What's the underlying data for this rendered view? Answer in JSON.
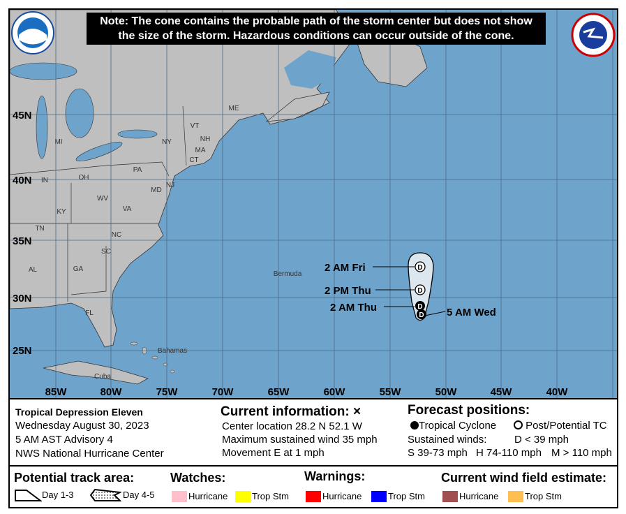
{
  "note": {
    "line1": "Note: The cone contains the probable path of the storm center but does not show",
    "line2": "the size of the storm. Hazardous conditions can occur outside of the cone."
  },
  "logos": {
    "left": "NOAA",
    "right": "NATIONAL WEATHER SERVICE"
  },
  "colors": {
    "ocean": "#6ea3cc",
    "land": "#bfbfbf",
    "cone": "#dbe6ee"
  },
  "map": {
    "lat_labels": [
      "45N",
      "40N",
      "35N",
      "30N",
      "25N"
    ],
    "lon_labels": [
      "85W",
      "80W",
      "75W",
      "70W",
      "65W",
      "60W",
      "55W",
      "50W",
      "45W",
      "40W"
    ],
    "states": [
      "MI",
      "OH",
      "IN",
      "KY",
      "TN",
      "AL",
      "GA",
      "SC",
      "NC",
      "VA",
      "WV",
      "PA",
      "NY",
      "VT",
      "NH",
      "ME",
      "MA",
      "CT",
      "MD",
      "NJ",
      "FL"
    ],
    "places": {
      "bermuda": "Bermuda",
      "bahamas": "Bahamas",
      "cuba": "Cuba"
    },
    "track": [
      {
        "label": "5 AM Wed",
        "symbol": "D",
        "type": "tropical-cyclone"
      },
      {
        "label": "2 AM Thu",
        "symbol": "D",
        "type": "tropical-cyclone"
      },
      {
        "label": "2 PM Thu",
        "symbol": "D",
        "type": "post-potential-tc"
      },
      {
        "label": "2 AM Fri",
        "symbol": "D",
        "type": "post-potential-tc"
      }
    ]
  },
  "info": {
    "storm": "Tropical Depression Eleven",
    "date": "Wednesday August 30, 2023",
    "advisory": "5 AM AST Advisory 4",
    "center": "NWS National Hurricane Center",
    "current_title": "Current information: ×",
    "location": "Center location 28.2 N 52.1 W",
    "wind": "Maximum sustained wind 35 mph",
    "movement": "Movement E at 1 mph",
    "forecast_title": "Forecast positions:",
    "tc": "Tropical Cyclone",
    "ptc": "Post/Potential TC",
    "sustained": "Sustained winds:",
    "d": "D < 39 mph",
    "s": "S 39-73 mph",
    "hh": "H 74-110 mph",
    "m": "M > 110 mph"
  },
  "legend": {
    "track_title": "Potential track area:",
    "day13": "Day 1-3",
    "day45": "Day 4-5",
    "watches_title": "Watches:",
    "warnings_title": "Warnings:",
    "wind_title": "Current wind field estimate:",
    "items": [
      {
        "label": "Hurricane",
        "color": "#ffc0cb"
      },
      {
        "label": "Trop Stm",
        "color": "#ffff00"
      },
      {
        "label": "Hurricane",
        "color": "#ff0000"
      },
      {
        "label": "Trop Stm",
        "color": "#0000ff"
      },
      {
        "label": "Hurricane",
        "color": "#a05050"
      },
      {
        "label": "Trop Stm",
        "color": "#ffbf50"
      }
    ]
  }
}
